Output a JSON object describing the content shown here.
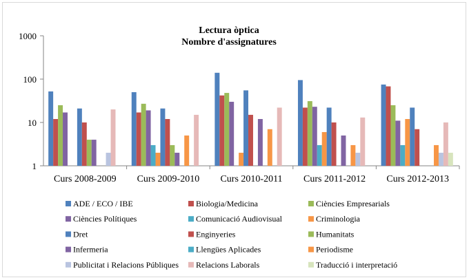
{
  "chart_data": {
    "type": "bar",
    "title": "Lectura òptica",
    "subtitle": "Nombre d'assignatures",
    "xlabel": "",
    "ylabel": "",
    "yscale": "log",
    "ylim": [
      1,
      1000
    ],
    "yticks": [
      "1",
      "10",
      "100",
      "1000"
    ],
    "grid": false,
    "legend_position": "bottom",
    "categories": [
      "Curs 2008-2009",
      "Curs 2009-2010",
      "Curs 2010-2011",
      "Curs 2011-2012",
      "Curs 2012-2013"
    ],
    "series": [
      {
        "name": "ADE / ECO / IBE",
        "color": "#4f81bd",
        "values": [
          52,
          50,
          140,
          95,
          75
        ]
      },
      {
        "name": "Biologia/Medicina",
        "color": "#c0504d",
        "values": [
          12,
          17,
          42,
          22,
          68
        ]
      },
      {
        "name": "Ciències Empresarials",
        "color": "#9bbb59",
        "values": [
          25,
          27,
          48,
          31,
          25
        ]
      },
      {
        "name": "Ciències Polítiques",
        "color": "#8064a2",
        "values": [
          17,
          19,
          30,
          23,
          11
        ]
      },
      {
        "name": "Comunicació Audiovisual",
        "color": "#4bacc6",
        "values": [
          null,
          3,
          null,
          3,
          3
        ]
      },
      {
        "name": "Criminologia",
        "color": "#f79646",
        "values": [
          null,
          2,
          2,
          6,
          12
        ]
      },
      {
        "name": "Dret",
        "color": "#4f81bd",
        "values": [
          21,
          21,
          55,
          22,
          22
        ]
      },
      {
        "name": "Enginyeries",
        "color": "#c0504d",
        "values": [
          10,
          12,
          15,
          10,
          7
        ]
      },
      {
        "name": "Humanitats",
        "color": "#9bbb59",
        "values": [
          4,
          3,
          null,
          null,
          null
        ]
      },
      {
        "name": "Infermeria",
        "color": "#8064a2",
        "values": [
          4,
          2,
          12,
          5,
          null
        ]
      },
      {
        "name": "Llengües Aplicades",
        "color": "#4bacc6",
        "values": [
          null,
          null,
          null,
          null,
          null
        ]
      },
      {
        "name": "Periodisme",
        "color": "#f79646",
        "values": [
          null,
          5,
          7,
          3,
          3
        ]
      },
      {
        "name": "Publicitat i Relacions Públiques",
        "color": "#b9c4e0",
        "values": [
          2,
          null,
          null,
          2,
          2
        ]
      },
      {
        "name": "Relacions Laborals",
        "color": "#e6b9b8",
        "values": [
          20,
          15,
          22,
          13,
          10
        ]
      },
      {
        "name": "Traducció i interpretació",
        "color": "#d7e4bd",
        "values": [
          null,
          null,
          null,
          null,
          2
        ]
      }
    ]
  }
}
